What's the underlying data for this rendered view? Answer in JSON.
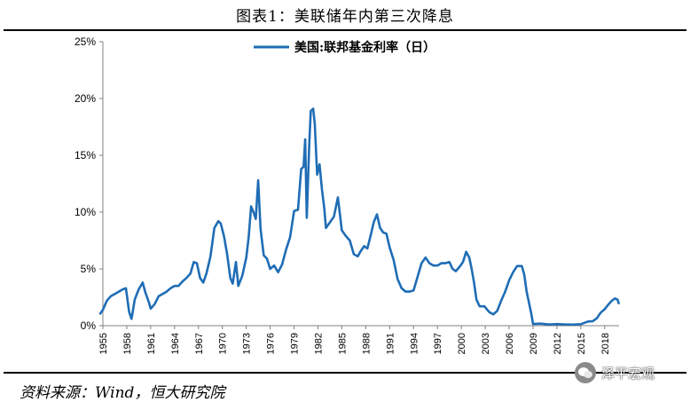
{
  "figure": {
    "title": "图表1：美联储年内第三次降息",
    "source": "资料来源：Wind，恒大研究院",
    "watermark": "泽平宏观"
  },
  "colors": {
    "line": "#1f6db5",
    "axis": "#808080",
    "text": "#000000"
  },
  "chart_data": {
    "type": "line",
    "title": "",
    "xlabel": "",
    "ylabel": "",
    "xlim": [
      1955,
      2019.8
    ],
    "ylim": [
      0,
      25
    ],
    "y_ticks": [
      "0%",
      "5%",
      "10%",
      "15%",
      "20%",
      "25%"
    ],
    "x_ticks": [
      "1955",
      "1958",
      "1961",
      "1964",
      "1967",
      "1970",
      "1973",
      "1976",
      "1979",
      "1982",
      "1985",
      "1988",
      "1991",
      "1994",
      "1997",
      "2000",
      "2003",
      "2006",
      "2009",
      "2012",
      "2015",
      "2018"
    ],
    "grid": false,
    "legend_position": "top-center",
    "series": [
      {
        "name": "美国:联邦基金利率（日）",
        "x": [
          1954.6,
          1955.0,
          1955.5,
          1956.0,
          1956.5,
          1957.0,
          1957.5,
          1957.9,
          1958.3,
          1958.6,
          1959.0,
          1959.5,
          1960.0,
          1960.3,
          1960.8,
          1961.0,
          1961.5,
          1962.0,
          1962.5,
          1963.0,
          1963.5,
          1964.0,
          1964.5,
          1965.0,
          1965.5,
          1966.0,
          1966.4,
          1966.8,
          1967.2,
          1967.6,
          1968.0,
          1968.5,
          1969.0,
          1969.5,
          1969.8,
          1970.2,
          1970.6,
          1971.0,
          1971.3,
          1971.7,
          1972.0,
          1972.5,
          1973.0,
          1973.3,
          1973.6,
          1973.9,
          1974.2,
          1974.5,
          1974.8,
          1975.2,
          1975.6,
          1976.0,
          1976.5,
          1977.0,
          1977.5,
          1978.0,
          1978.5,
          1979.0,
          1979.5,
          1979.9,
          1980.2,
          1980.4,
          1980.6,
          1980.9,
          1981.1,
          1981.4,
          1981.6,
          1981.9,
          1982.2,
          1982.5,
          1982.8,
          1983.0,
          1983.5,
          1984.0,
          1984.5,
          1984.8,
          1985.0,
          1985.5,
          1986.0,
          1986.5,
          1987.0,
          1987.4,
          1987.8,
          1988.2,
          1988.6,
          1989.0,
          1989.4,
          1989.8,
          1990.2,
          1990.6,
          1991.0,
          1991.5,
          1992.0,
          1992.5,
          1993.0,
          1993.5,
          1994.0,
          1994.5,
          1995.0,
          1995.5,
          1996.0,
          1996.5,
          1997.0,
          1997.5,
          1998.0,
          1998.5,
          1998.9,
          1999.3,
          1999.8,
          2000.2,
          2000.6,
          2001.0,
          2001.3,
          2001.6,
          2001.9,
          2002.3,
          2002.9,
          2003.5,
          2004.0,
          2004.5,
          2005.0,
          2005.5,
          2006.0,
          2006.5,
          2007.0,
          2007.6,
          2007.9,
          2008.2,
          2008.5,
          2008.8,
          2009.0,
          2010.0,
          2011.0,
          2012.0,
          2013.0,
          2014.0,
          2015.0,
          2015.9,
          2016.5,
          2017.0,
          2017.5,
          2018.0,
          2018.5,
          2018.9,
          2019.3,
          2019.6,
          2019.8
        ],
        "y": [
          1.0,
          1.4,
          2.2,
          2.6,
          2.8,
          3.0,
          3.2,
          3.3,
          1.2,
          0.6,
          2.3,
          3.2,
          3.8,
          3.0,
          2.0,
          1.5,
          1.9,
          2.6,
          2.8,
          3.0,
          3.3,
          3.5,
          3.5,
          3.9,
          4.2,
          4.6,
          5.6,
          5.5,
          4.2,
          3.8,
          4.6,
          6.1,
          8.6,
          9.2,
          9.0,
          7.9,
          6.3,
          4.2,
          3.7,
          5.6,
          3.5,
          4.4,
          6.0,
          7.8,
          10.5,
          10.0,
          9.4,
          12.8,
          8.5,
          6.2,
          5.9,
          5.0,
          5.3,
          4.7,
          5.4,
          6.7,
          7.8,
          10.1,
          10.2,
          13.8,
          14.0,
          16.4,
          9.5,
          15.8,
          18.9,
          19.1,
          17.8,
          13.3,
          14.2,
          12.0,
          10.3,
          8.6,
          9.1,
          9.6,
          11.3,
          9.6,
          8.4,
          7.9,
          7.5,
          6.3,
          6.1,
          6.6,
          7.0,
          6.8,
          7.9,
          9.1,
          9.8,
          8.6,
          8.2,
          8.1,
          6.9,
          5.8,
          4.1,
          3.3,
          3.0,
          3.0,
          3.1,
          4.3,
          5.5,
          6.0,
          5.5,
          5.3,
          5.3,
          5.5,
          5.5,
          5.6,
          5.0,
          4.8,
          5.2,
          5.6,
          6.5,
          6.0,
          5.0,
          3.8,
          2.3,
          1.7,
          1.7,
          1.2,
          1.0,
          1.3,
          2.2,
          3.0,
          4.0,
          4.7,
          5.25,
          5.25,
          4.5,
          3.0,
          2.0,
          1.0,
          0.15,
          0.18,
          0.1,
          0.14,
          0.11,
          0.09,
          0.13,
          0.37,
          0.4,
          0.65,
          1.15,
          1.45,
          1.9,
          2.2,
          2.4,
          2.3,
          1.9
        ]
      }
    ]
  }
}
